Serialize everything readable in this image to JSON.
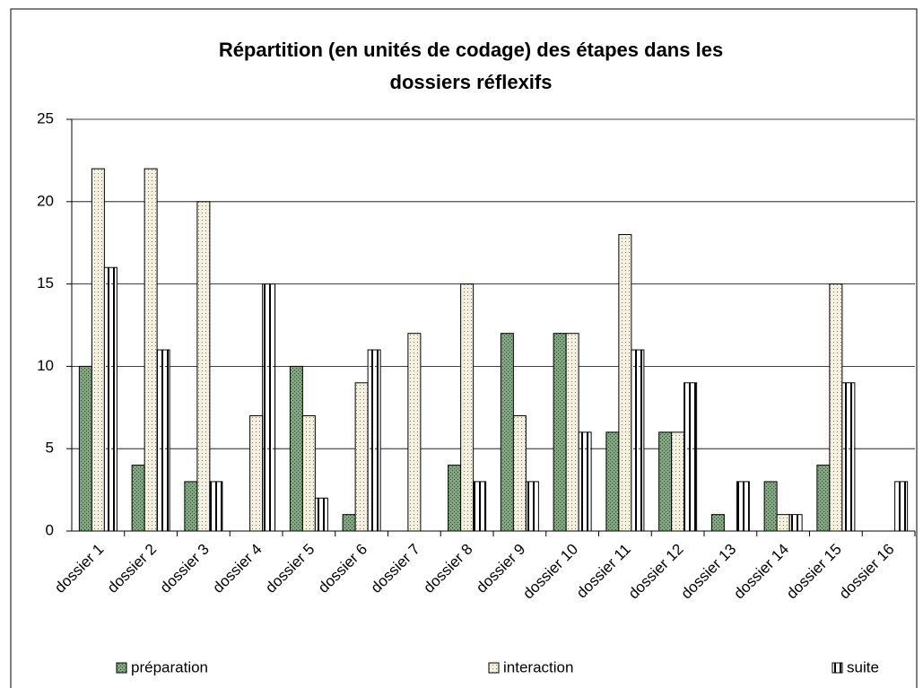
{
  "chart_data": {
    "type": "bar",
    "title": "Répartition (en unités de codage) des étapes dans les dossiers réflexifs",
    "categories": [
      "dossier 1",
      "dossier 2",
      "dossier 3",
      "dossier 4",
      "dossier 5",
      "dossier 6",
      "dossier 7",
      "dossier 8",
      "dossier 9",
      "dossier 10",
      "dossier 11",
      "dossier 12",
      "dossier 13",
      "dossier 14",
      "dossier 15",
      "dossier 16"
    ],
    "series": [
      {
        "name": "préparation",
        "color": "#7fa87f",
        "values": [
          10,
          4,
          3,
          0,
          10,
          1,
          0,
          4,
          12,
          12,
          6,
          6,
          1,
          3,
          4,
          0
        ]
      },
      {
        "name": "interaction",
        "color": "#f3f0e0",
        "values": [
          22,
          22,
          20,
          7,
          7,
          9,
          12,
          15,
          7,
          12,
          18,
          6,
          0,
          1,
          15,
          0
        ]
      },
      {
        "name": "suite",
        "color": "#000000",
        "values": [
          16,
          11,
          3,
          15,
          2,
          11,
          0,
          3,
          3,
          6,
          11,
          9,
          3,
          1,
          9,
          3
        ]
      }
    ],
    "ylim": [
      0,
      25
    ],
    "yticks": [
      0,
      5,
      10,
      15,
      20,
      25
    ],
    "grid": true,
    "legend": "bottom"
  }
}
